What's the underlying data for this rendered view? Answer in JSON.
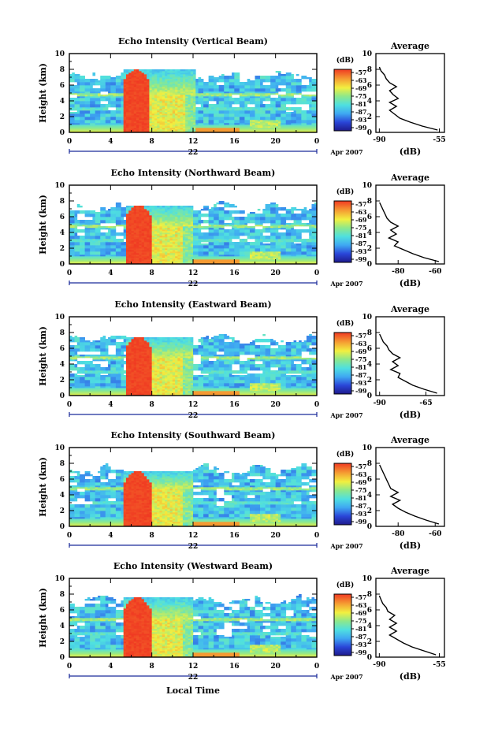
{
  "figure": {
    "x_axis_label": "Local Time",
    "colorbar_unit": "(dB)",
    "colorbar_ticks": [
      "-57",
      "-63",
      "-69",
      "-75",
      "-81",
      "-87",
      "-93",
      "-99"
    ],
    "date_label": "Apr 2007",
    "day_label": "22",
    "height_axis_label": "Height (km)",
    "average_title": "Average",
    "average_xlabel": "(dB)"
  },
  "chart_data": [
    {
      "type": "heatmap",
      "title": "Echo Intensity (Vertical Beam)",
      "xlabel": "",
      "ylabel": "Height (km)",
      "x_ticks": [
        "0",
        "4",
        "8",
        "12",
        "16",
        "20",
        "0"
      ],
      "y_ticks": [
        "0",
        "2",
        "4",
        "6",
        "8",
        "10"
      ],
      "xlim": [
        0,
        24
      ],
      "ylim": [
        0,
        10
      ],
      "colorbar": {
        "min": -99,
        "max": -57,
        "unit": "(dB)"
      },
      "features": {
        "storm_start": 5.2,
        "storm_end": 12.2,
        "storm_top": 8.0,
        "cloud_top": 7.6,
        "band_height": 4.8
      },
      "average_profile": {
        "title": "Average",
        "xlabel": "(dB)",
        "x_ticks": [
          "-90",
          "-55"
        ],
        "xlim": [
          -92,
          -52
        ],
        "y": [
          0.3,
          0.8,
          1.3,
          1.8,
          2.3,
          2.8,
          3.3,
          3.8,
          4.3,
          4.8,
          5.3,
          5.8,
          6.3,
          6.8,
          7.3,
          7.8,
          8.3
        ],
        "x": [
          -56,
          -65,
          -72,
          -78,
          -81,
          -84,
          -80,
          -84,
          -79,
          -82,
          -84,
          -80,
          -84,
          -86,
          -87,
          -89,
          -90
        ]
      }
    },
    {
      "type": "heatmap",
      "title": "Echo Intensity (Northward Beam)",
      "xlabel": "",
      "ylabel": "Height (km)",
      "x_ticks": [
        "0",
        "4",
        "8",
        "12",
        "16",
        "20",
        "0"
      ],
      "y_ticks": [
        "0",
        "2",
        "4",
        "6",
        "8",
        "10"
      ],
      "xlim": [
        0,
        24
      ],
      "ylim": [
        0,
        10
      ],
      "colorbar": {
        "min": -99,
        "max": -57,
        "unit": "(dB)"
      },
      "features": {
        "storm_start": 5.4,
        "storm_end": 12.0,
        "storm_top": 7.5,
        "cloud_top": 7.6,
        "band_height": 4.8
      },
      "average_profile": {
        "title": "Average",
        "xlabel": "(dB)",
        "x_ticks": [
          "-80",
          "-60"
        ],
        "xlim": [
          -92,
          -55
        ],
        "y": [
          0.3,
          0.8,
          1.3,
          1.8,
          2.3,
          2.8,
          3.3,
          3.8,
          4.3,
          4.8,
          5.3,
          5.8,
          6.3,
          6.8,
          7.3,
          7.8
        ],
        "x": [
          -58,
          -66,
          -72,
          -77,
          -82,
          -80,
          -85,
          -81,
          -84,
          -80,
          -84,
          -86,
          -87,
          -88,
          -89,
          -90
        ]
      }
    },
    {
      "type": "heatmap",
      "title": "Echo Intensity (Eastward Beam)",
      "xlabel": "",
      "ylabel": "Height (km)",
      "x_ticks": [
        "0",
        "4",
        "8",
        "12",
        "16",
        "20",
        "0"
      ],
      "y_ticks": [
        "0",
        "2",
        "4",
        "6",
        "8",
        "10"
      ],
      "xlim": [
        0,
        24
      ],
      "ylim": [
        0,
        10
      ],
      "colorbar": {
        "min": -99,
        "max": -57,
        "unit": "(dB)"
      },
      "features": {
        "storm_start": 5.4,
        "storm_end": 12.0,
        "storm_top": 7.5,
        "cloud_top": 7.6,
        "band_height": 4.8
      },
      "average_profile": {
        "title": "Average",
        "xlabel": "(dB)",
        "x_ticks": [
          "-90",
          "-65"
        ],
        "xlim": [
          -92,
          -55
        ],
        "y": [
          0.3,
          0.8,
          1.3,
          1.8,
          2.3,
          2.8,
          3.3,
          3.8,
          4.3,
          4.8,
          5.3,
          5.8,
          6.3,
          6.8,
          7.3,
          7.8
        ],
        "x": [
          -59,
          -66,
          -72,
          -76,
          -80,
          -79,
          -84,
          -80,
          -83,
          -79,
          -83,
          -85,
          -86,
          -88,
          -89,
          -90
        ]
      }
    },
    {
      "type": "heatmap",
      "title": "Echo Intensity (Southward Beam)",
      "xlabel": "",
      "ylabel": "Height (km)",
      "x_ticks": [
        "0",
        "4",
        "8",
        "12",
        "16",
        "20",
        "0"
      ],
      "y_ticks": [
        "0",
        "2",
        "4",
        "6",
        "8",
        "10"
      ],
      "xlim": [
        0,
        24
      ],
      "ylim": [
        0,
        10
      ],
      "colorbar": {
        "min": -99,
        "max": -57,
        "unit": "(dB)"
      },
      "features": {
        "storm_start": 5.3,
        "storm_end": 12.0,
        "storm_top": 7.0,
        "cloud_top": 7.6,
        "band_height": 4.8
      },
      "average_profile": {
        "title": "Average",
        "xlabel": "(dB)",
        "x_ticks": [
          "-80",
          "-60"
        ],
        "xlim": [
          -92,
          -55
        ],
        "y": [
          0.3,
          0.8,
          1.3,
          1.8,
          2.3,
          2.8,
          3.3,
          3.8,
          4.3,
          4.8,
          5.3,
          5.8,
          6.3,
          6.8,
          7.3,
          7.8
        ],
        "x": [
          -58,
          -65,
          -71,
          -76,
          -80,
          -83,
          -79,
          -84,
          -80,
          -84,
          -85,
          -86,
          -87,
          -88,
          -89,
          -90
        ]
      }
    },
    {
      "type": "heatmap",
      "title": "Echo Intensity (Westward Beam)",
      "xlabel": "Local Time",
      "ylabel": "Height (km)",
      "x_ticks": [
        "0",
        "4",
        "8",
        "12",
        "16",
        "20",
        "0"
      ],
      "y_ticks": [
        "0",
        "2",
        "4",
        "6",
        "8",
        "10"
      ],
      "xlim": [
        0,
        24
      ],
      "ylim": [
        0,
        10
      ],
      "colorbar": {
        "min": -99,
        "max": -57,
        "unit": "(dB)"
      },
      "features": {
        "storm_start": 5.3,
        "storm_end": 12.0,
        "storm_top": 7.6,
        "cloud_top": 7.6,
        "band_height": 4.8
      },
      "average_profile": {
        "title": "Average",
        "xlabel": "(dB)",
        "x_ticks": [
          "-90",
          "-55"
        ],
        "xlim": [
          -92,
          -52
        ],
        "y": [
          0.3,
          0.8,
          1.3,
          1.8,
          2.3,
          2.8,
          3.3,
          3.8,
          4.3,
          4.8,
          5.3,
          5.8,
          6.3,
          6.8,
          7.3,
          7.8
        ],
        "x": [
          -57,
          -64,
          -71,
          -76,
          -80,
          -84,
          -80,
          -84,
          -80,
          -84,
          -81,
          -85,
          -86,
          -88,
          -89,
          -90
        ]
      }
    }
  ]
}
